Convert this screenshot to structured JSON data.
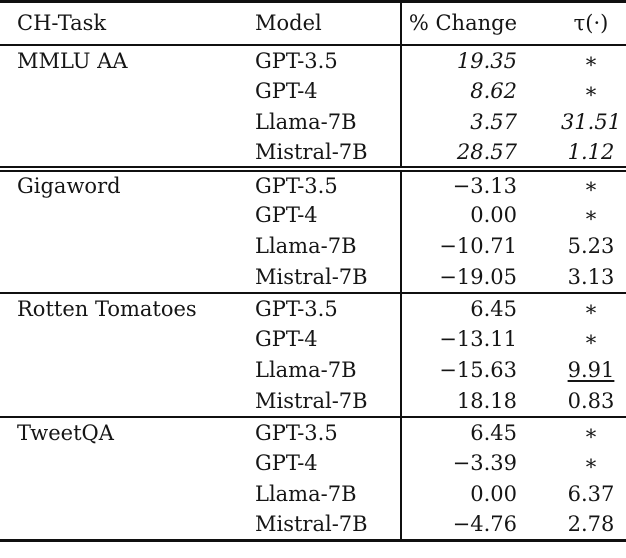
{
  "table": {
    "columns": [
      "CH-Task",
      "Model",
      "% Change",
      "τ(·)"
    ],
    "sections": [
      {
        "task": "MMLU AA",
        "value_style": "italic",
        "separator_after": "double",
        "rows": [
          {
            "model": "GPT-3.5",
            "pct_change": "19.35",
            "tau": "∗"
          },
          {
            "model": "GPT-4",
            "pct_change": "8.62",
            "tau": "∗"
          },
          {
            "model": "Llama-7B",
            "pct_change": "3.57",
            "tau": "31.51"
          },
          {
            "model": "Mistral-7B",
            "pct_change": "28.57",
            "tau": "1.12"
          }
        ]
      },
      {
        "task": "Gigaword",
        "value_style": "normal",
        "separator_after": "single",
        "rows": [
          {
            "model": "GPT-3.5",
            "pct_change": "−3.13",
            "tau": "∗"
          },
          {
            "model": "GPT-4",
            "pct_change": "0.00",
            "tau": "∗"
          },
          {
            "model": "Llama-7B",
            "pct_change": "−10.71",
            "tau": "5.23"
          },
          {
            "model": "Mistral-7B",
            "pct_change": "−19.05",
            "tau": "3.13"
          }
        ]
      },
      {
        "task": "Rotten Tomatoes",
        "value_style": "normal",
        "separator_after": "single",
        "rows": [
          {
            "model": "GPT-3.5",
            "pct_change": "6.45",
            "tau": "∗"
          },
          {
            "model": "GPT-4",
            "pct_change": "−13.11",
            "tau": "∗"
          },
          {
            "model": "Llama-7B",
            "pct_change": "−15.63",
            "tau": "9.91",
            "tau_underline": true
          },
          {
            "model": "Mistral-7B",
            "pct_change": "18.18",
            "tau": "0.83"
          }
        ]
      },
      {
        "task": "TweetQA",
        "value_style": "normal",
        "separator_after": "none",
        "rows": [
          {
            "model": "GPT-3.5",
            "pct_change": "6.45",
            "tau": "∗"
          },
          {
            "model": "GPT-4",
            "pct_change": "−3.39",
            "tau": "∗"
          },
          {
            "model": "Llama-7B",
            "pct_change": "0.00",
            "tau": "6.37"
          },
          {
            "model": "Mistral-7B",
            "pct_change": "−4.76",
            "tau": "2.78"
          }
        ]
      }
    ]
  }
}
